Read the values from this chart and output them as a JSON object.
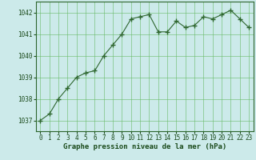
{
  "x": [
    0,
    1,
    2,
    3,
    4,
    5,
    6,
    7,
    8,
    9,
    10,
    11,
    12,
    13,
    14,
    15,
    16,
    17,
    18,
    19,
    20,
    21,
    22,
    23
  ],
  "y": [
    1037.0,
    1037.3,
    1038.0,
    1038.5,
    1039.0,
    1039.2,
    1039.3,
    1040.0,
    1040.5,
    1041.0,
    1041.7,
    1041.8,
    1041.9,
    1041.1,
    1041.1,
    1041.6,
    1041.3,
    1041.4,
    1041.8,
    1041.7,
    1041.9,
    1042.1,
    1041.7,
    1041.3
  ],
  "line_color": "#2d662d",
  "marker_color": "#2d662d",
  "bg_color": "#cceaea",
  "grid_color": "#66bb66",
  "xlabel": "Graphe pression niveau de la mer (hPa)",
  "ylim": [
    1036.5,
    1042.5
  ],
  "xlim": [
    -0.5,
    23.5
  ],
  "yticks": [
    1037,
    1038,
    1039,
    1040,
    1041,
    1042
  ],
  "xticks": [
    0,
    1,
    2,
    3,
    4,
    5,
    6,
    7,
    8,
    9,
    10,
    11,
    12,
    13,
    14,
    15,
    16,
    17,
    18,
    19,
    20,
    21,
    22,
    23
  ],
  "tick_fontsize": 5.5,
  "xlabel_fontsize": 6.5,
  "tick_color": "#1a4a1a",
  "spine_color": "#2d662d"
}
